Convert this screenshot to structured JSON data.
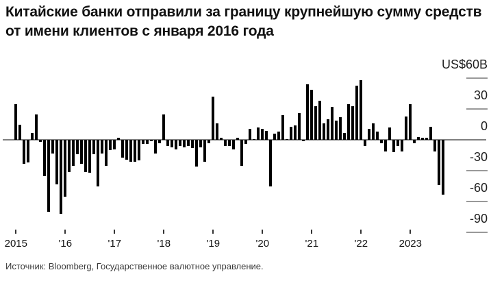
{
  "title": "Китайские банки отправили за границу крупнейшую сумму средств от имени клиентов с января 2016 года",
  "source": "Источник: Bloomberg, Государственное валютное управление.",
  "colors": {
    "background": "#ffffff",
    "bar": "#000000",
    "zero_line": "#7f7f7f",
    "axis_dash": "#999999",
    "title_text": "#111111",
    "axis_text": "#222222",
    "source_text": "#3a3a3a"
  },
  "chart_data": {
    "type": "bar",
    "title": "Китайские банки отправили за границу крупнейшую сумму средств от имени клиентов с января 2016 года",
    "unit": "US$B (billions of US dollars)",
    "frequency": "monthly",
    "start_month": "2015-01",
    "end_month": "2023-09",
    "x": [
      "2015-01",
      "2015-02",
      "2015-03",
      "2015-04",
      "2015-05",
      "2015-06",
      "2015-07",
      "2015-08",
      "2015-09",
      "2015-10",
      "2015-11",
      "2015-12",
      "2016-01",
      "2016-02",
      "2016-03",
      "2016-04",
      "2016-05",
      "2016-06",
      "2016-07",
      "2016-08",
      "2016-09",
      "2016-10",
      "2016-11",
      "2016-12",
      "2017-01",
      "2017-02",
      "2017-03",
      "2017-04",
      "2017-05",
      "2017-06",
      "2017-07",
      "2017-08",
      "2017-09",
      "2017-10",
      "2017-11",
      "2017-12",
      "2018-01",
      "2018-02",
      "2018-03",
      "2018-04",
      "2018-05",
      "2018-06",
      "2018-07",
      "2018-08",
      "2018-09",
      "2018-10",
      "2018-11",
      "2018-12",
      "2019-01",
      "2019-02",
      "2019-03",
      "2019-04",
      "2019-05",
      "2019-06",
      "2019-07",
      "2019-08",
      "2019-09",
      "2019-10",
      "2019-11",
      "2019-12",
      "2020-01",
      "2020-02",
      "2020-03",
      "2020-04",
      "2020-05",
      "2020-06",
      "2020-07",
      "2020-08",
      "2020-09",
      "2020-10",
      "2020-11",
      "2020-12",
      "2021-01",
      "2021-02",
      "2021-03",
      "2021-04",
      "2021-05",
      "2021-06",
      "2021-07",
      "2021-08",
      "2021-09",
      "2021-10",
      "2021-11",
      "2021-12",
      "2022-01",
      "2022-02",
      "2022-03",
      "2022-04",
      "2022-05",
      "2022-06",
      "2022-07",
      "2022-08",
      "2022-09",
      "2022-10",
      "2022-11",
      "2022-12",
      "2023-01",
      "2023-02",
      "2023-03",
      "2023-04",
      "2023-05",
      "2023-06",
      "2023-07",
      "2023-08",
      "2023-09"
    ],
    "values": [
      35,
      15,
      -23,
      -22,
      7,
      25,
      -2,
      -35,
      -70,
      -13,
      -43,
      -72,
      -55,
      -31,
      -25,
      -14,
      -23,
      -31,
      -32,
      -14,
      -45,
      -13,
      -25,
      -10,
      -9,
      2,
      -17,
      -19,
      -21,
      -21,
      -20,
      -4,
      -4,
      -1,
      -13,
      -3,
      25,
      -6,
      -7,
      -9,
      -6,
      -7,
      -6,
      -8,
      -26,
      -7,
      -21,
      -3,
      42,
      16,
      2,
      -6,
      -6,
      -9,
      2,
      -25,
      -4,
      11,
      1,
      12,
      11,
      9,
      -45,
      6,
      8,
      24,
      1,
      13,
      14,
      26,
      -1,
      54,
      49,
      33,
      38,
      16,
      20,
      32,
      19,
      22,
      7,
      35,
      33,
      53,
      58,
      -6,
      11,
      16,
      8,
      -3,
      -11,
      12,
      -12,
      -6,
      -11,
      23,
      35,
      -3,
      3,
      2,
      2,
      13,
      -11,
      -44,
      -53
    ],
    "ylim": [
      -90,
      60
    ],
    "y_axis": {
      "ticks": [
        60,
        30,
        0,
        -30,
        -60,
        -90
      ],
      "tick_labels": [
        "US$60B",
        "30",
        "0",
        "-30",
        "-60",
        "-90"
      ],
      "side": "right"
    },
    "x_axis": {
      "tick_years": [
        2015,
        2016,
        2017,
        2018,
        2019,
        2020,
        2021,
        2022,
        2023
      ],
      "tick_labels": [
        "2015",
        "'16",
        "'17",
        "'18",
        "'19",
        "'20",
        "'21",
        "'22",
        "2023"
      ]
    },
    "grid": "zero-line-only",
    "legend_position": "none",
    "xlabel": "",
    "ylabel": "US$B"
  }
}
